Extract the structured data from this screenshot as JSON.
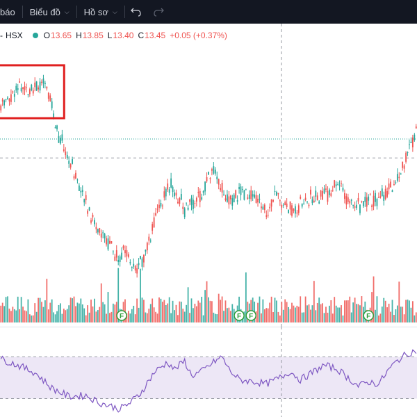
{
  "toolbar": {
    "cut_label": "báo",
    "chart_menu": "Biểu đồ",
    "profile_menu": "Hồ sơ",
    "undo_icon": "undo-icon",
    "redo_icon": "redo-icon"
  },
  "legend": {
    "exchange": "HSX",
    "status_color": "#26a69a",
    "open_key": "O",
    "open": "13.65",
    "high_key": "H",
    "high": "13.85",
    "low_key": "L",
    "low": "13.40",
    "close_key": "C",
    "close": "13.45",
    "change": "+0.05 (+0.37%)"
  },
  "colors": {
    "up": "#26a69a",
    "down": "#ef5350",
    "rsi": "#7e57c2",
    "rsi_band": "#ede7f6",
    "highlight": "#e02020"
  },
  "event_markers": [
    "F",
    "F",
    "F",
    "F"
  ],
  "chart_data": {
    "type": "candlestick",
    "subplots": [
      "price",
      "volume",
      "rsi"
    ],
    "price_range": [
      12.7,
      15.2
    ],
    "reference_price": 14.2,
    "current_price": 13.45,
    "rsi_band": [
      30,
      70
    ],
    "rsi_range": [
      15,
      95
    ],
    "volume_range": [
      0,
      100
    ],
    "price_waypoints": [
      [
        0,
        14.55
      ],
      [
        10,
        14.74
      ],
      [
        22,
        14.78
      ],
      [
        28,
        14.7
      ],
      [
        32,
        14.35
      ],
      [
        38,
        14.05
      ],
      [
        46,
        13.75
      ],
      [
        55,
        13.3
      ],
      [
        62,
        13.15
      ],
      [
        68,
        12.95
      ],
      [
        75,
        13.0
      ],
      [
        80,
        12.8
      ],
      [
        86,
        13.05
      ],
      [
        90,
        13.35
      ],
      [
        96,
        13.6
      ],
      [
        100,
        13.7
      ],
      [
        108,
        13.45
      ],
      [
        113,
        13.55
      ],
      [
        118,
        13.6
      ],
      [
        124,
        13.85
      ],
      [
        128,
        13.8
      ],
      [
        132,
        13.55
      ],
      [
        138,
        13.6
      ],
      [
        144,
        13.65
      ],
      [
        150,
        13.55
      ],
      [
        156,
        13.45
      ],
      [
        162,
        13.65
      ],
      [
        166,
        13.5
      ],
      [
        172,
        13.45
      ],
      [
        180,
        13.55
      ],
      [
        188,
        13.6
      ],
      [
        198,
        13.7
      ],
      [
        205,
        13.55
      ],
      [
        212,
        13.5
      ],
      [
        220,
        13.55
      ],
      [
        228,
        13.65
      ],
      [
        235,
        13.85
      ],
      [
        240,
        14.1
      ],
      [
        244,
        14.3
      ]
    ],
    "rsi_waypoints": [
      [
        0,
        68
      ],
      [
        10,
        62
      ],
      [
        20,
        55
      ],
      [
        30,
        40
      ],
      [
        40,
        32
      ],
      [
        50,
        33
      ],
      [
        58,
        26
      ],
      [
        66,
        22
      ],
      [
        70,
        20
      ],
      [
        76,
        26
      ],
      [
        82,
        35
      ],
      [
        90,
        55
      ],
      [
        98,
        65
      ],
      [
        102,
        58
      ],
      [
        108,
        66
      ],
      [
        112,
        52
      ],
      [
        118,
        56
      ],
      [
        126,
        66
      ],
      [
        130,
        70
      ],
      [
        134,
        58
      ],
      [
        140,
        48
      ],
      [
        150,
        46
      ],
      [
        156,
        44
      ],
      [
        164,
        50
      ],
      [
        170,
        56
      ],
      [
        176,
        48
      ],
      [
        184,
        56
      ],
      [
        190,
        62
      ],
      [
        198,
        58
      ],
      [
        204,
        50
      ],
      [
        210,
        42
      ],
      [
        216,
        46
      ],
      [
        222,
        44
      ],
      [
        228,
        58
      ],
      [
        234,
        68
      ],
      [
        240,
        74
      ],
      [
        244,
        76
      ]
    ]
  }
}
